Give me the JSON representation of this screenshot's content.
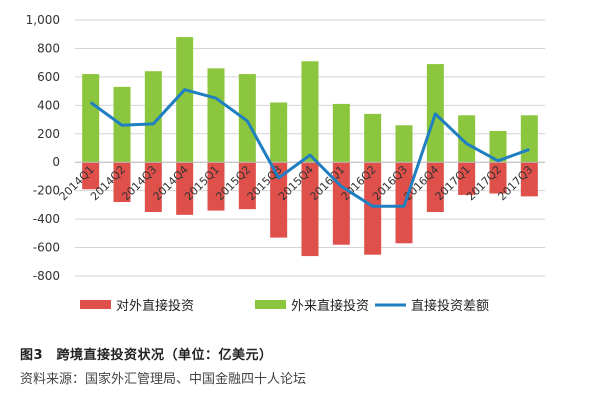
{
  "chart_data": {
    "type": "bar",
    "categories": [
      "2014Q1",
      "2014Q2",
      "2014Q3",
      "2014Q4",
      "2015Q1",
      "2015Q2",
      "2015Q3",
      "2015Q4",
      "2016Q1",
      "2016Q2",
      "2016Q3",
      "2016Q4",
      "2017Q1",
      "2017Q2",
      "2017Q3"
    ],
    "series": [
      {
        "name": "对外直接投资",
        "kind": "bar",
        "color": "#e0504a",
        "values": [
          -190,
          -280,
          -350,
          -370,
          -340,
          -330,
          -530,
          -660,
          -580,
          -650,
          -570,
          -350,
          -230,
          -220,
          -240
        ]
      },
      {
        "name": "外来直接投资",
        "kind": "bar",
        "color": "#8cc63f",
        "values": [
          620,
          530,
          640,
          880,
          660,
          620,
          420,
          710,
          410,
          340,
          260,
          690,
          330,
          220,
          330
        ]
      },
      {
        "name": "直接投资差额",
        "kind": "line",
        "color": "#1f7fc0",
        "values": [
          420,
          260,
          270,
          510,
          450,
          290,
          -110,
          50,
          -170,
          -310,
          -310,
          340,
          130,
          10,
          90
        ]
      }
    ],
    "yticks": [
      "1,000",
      "800",
      "600",
      "400",
      "200",
      "0",
      "-200",
      "-400",
      "-600",
      "-800"
    ],
    "ylim": [
      -800,
      1000
    ],
    "grid": true,
    "legend_position": "bottom"
  },
  "caption": {
    "title": "图3　跨境直接投资状况（单位：亿美元）",
    "source": "资料来源：国家外汇管理局、中国金融四十人论坛"
  }
}
